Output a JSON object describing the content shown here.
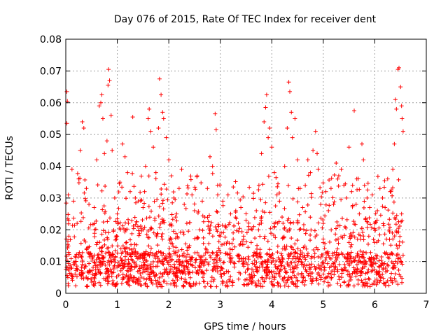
{
  "chart_data": {
    "type": "scatter",
    "title": "Day 076 of 2015, Rate Of TEC Index for receiver dent",
    "xlabel": "GPS time / hours",
    "ylabel": "ROTI / TECUs",
    "xlim": [
      0,
      7
    ],
    "ylim": [
      0,
      0.08
    ],
    "xticks": [
      0,
      1,
      2,
      3,
      4,
      5,
      6,
      7
    ],
    "yticks": [
      0,
      0.01,
      0.02,
      0.03,
      0.04,
      0.05,
      0.06,
      0.07,
      0.08
    ],
    "xtick_labels": [
      "0",
      "1",
      "2",
      "3",
      "4",
      "5",
      "6",
      "7"
    ],
    "ytick_labels": [
      "0",
      "0.01",
      "0.02",
      "0.03",
      "0.04",
      "0.05",
      "0.06",
      "0.07",
      "0.08"
    ],
    "grid": true,
    "marker": "+",
    "color": "#ff0000",
    "x_data_range": [
      0,
      6.55
    ],
    "series": [
      {
        "name": "ROTI",
        "points": [
          [
            0.02,
            0.0635
          ],
          [
            0.03,
            0.0605
          ],
          [
            0.02,
            0.0535
          ],
          [
            0.05,
            0.031
          ],
          [
            0.06,
            0.018
          ],
          [
            0.08,
            0.008
          ],
          [
            0.04,
            0.005
          ],
          [
            0.12,
            0.039
          ],
          [
            0.15,
            0.029
          ],
          [
            0.18,
            0.006
          ],
          [
            0.22,
            0.022
          ],
          [
            0.25,
            0.036
          ],
          [
            0.28,
            0.045
          ],
          [
            0.32,
            0.054
          ],
          [
            0.35,
            0.052
          ],
          [
            0.4,
            0.033
          ],
          [
            0.45,
            0.028
          ],
          [
            0.5,
            0.012
          ],
          [
            0.55,
            0.027
          ],
          [
            0.6,
            0.042
          ],
          [
            0.65,
            0.059
          ],
          [
            0.68,
            0.06
          ],
          [
            0.7,
            0.0625
          ],
          [
            0.72,
            0.055
          ],
          [
            0.75,
            0.044
          ],
          [
            0.8,
            0.048
          ],
          [
            0.82,
            0.0655
          ],
          [
            0.83,
            0.0705
          ],
          [
            0.85,
            0.067
          ],
          [
            0.88,
            0.056
          ],
          [
            0.9,
            0.045
          ],
          [
            0.95,
            0.03
          ],
          [
            1.0,
            0.025
          ],
          [
            1.05,
            0.035
          ],
          [
            1.1,
            0.047
          ],
          [
            1.15,
            0.043
          ],
          [
            1.2,
            0.038
          ],
          [
            1.25,
            0.032
          ],
          [
            1.3,
            0.0555
          ],
          [
            1.35,
            0.03
          ],
          [
            1.4,
            0.021
          ],
          [
            1.45,
            0.012
          ],
          [
            1.5,
            0.027
          ],
          [
            1.55,
            0.04
          ],
          [
            1.6,
            0.055
          ],
          [
            1.62,
            0.058
          ],
          [
            1.65,
            0.051
          ],
          [
            1.7,
            0.046
          ],
          [
            1.75,
            0.038
          ],
          [
            1.8,
            0.052
          ],
          [
            1.82,
            0.0675
          ],
          [
            1.85,
            0.0625
          ],
          [
            1.88,
            0.057
          ],
          [
            1.9,
            0.055
          ],
          [
            1.95,
            0.049
          ],
          [
            2.0,
            0.042
          ],
          [
            2.05,
            0.037
          ],
          [
            2.1,
            0.03
          ],
          [
            2.15,
            0.025
          ],
          [
            2.2,
            0.033
          ],
          [
            2.25,
            0.039
          ],
          [
            2.3,
            0.028
          ],
          [
            2.35,
            0.022
          ],
          [
            2.4,
            0.015
          ],
          [
            2.45,
            0.031
          ],
          [
            2.5,
            0.026
          ],
          [
            2.55,
            0.037
          ],
          [
            2.6,
            0.02
          ],
          [
            2.65,
            0.029
          ],
          [
            2.7,
            0.024
          ],
          [
            2.75,
            0.033
          ],
          [
            2.8,
            0.043
          ],
          [
            2.85,
            0.04
          ],
          [
            2.9,
            0.0565
          ],
          [
            2.92,
            0.0515
          ],
          [
            2.95,
            0.031
          ],
          [
            3.0,
            0.018
          ],
          [
            3.05,
            0.029
          ],
          [
            3.1,
            0.021
          ],
          [
            3.15,
            0.031
          ],
          [
            3.2,
            0.025
          ],
          [
            3.25,
            0.019
          ],
          [
            3.3,
            0.026
          ],
          [
            3.35,
            0.022
          ],
          [
            3.4,
            0.027
          ],
          [
            3.45,
            0.017
          ],
          [
            3.5,
            0.023
          ],
          [
            3.55,
            0.02
          ],
          [
            3.6,
            0.016
          ],
          [
            3.65,
            0.021
          ],
          [
            3.7,
            0.026
          ],
          [
            3.75,
            0.034
          ],
          [
            3.8,
            0.044
          ],
          [
            3.85,
            0.054
          ],
          [
            3.88,
            0.0585
          ],
          [
            3.9,
            0.0625
          ],
          [
            3.93,
            0.049
          ],
          [
            3.96,
            0.052
          ],
          [
            4.0,
            0.046
          ],
          [
            4.05,
            0.038
          ],
          [
            4.1,
            0.031
          ],
          [
            4.15,
            0.029
          ],
          [
            4.2,
            0.024
          ],
          [
            4.25,
            0.04
          ],
          [
            4.3,
            0.052
          ],
          [
            4.33,
            0.0665
          ],
          [
            4.35,
            0.0635
          ],
          [
            4.38,
            0.057
          ],
          [
            4.4,
            0.049
          ],
          [
            4.45,
            0.055
          ],
          [
            4.5,
            0.042
          ],
          [
            4.55,
            0.033
          ],
          [
            4.6,
            0.027
          ],
          [
            4.65,
            0.034
          ],
          [
            4.7,
            0.042
          ],
          [
            4.75,
            0.038
          ],
          [
            4.8,
            0.045
          ],
          [
            4.85,
            0.051
          ],
          [
            4.88,
            0.044
          ],
          [
            4.9,
            0.039
          ],
          [
            4.95,
            0.028
          ],
          [
            5.0,
            0.022
          ],
          [
            5.05,
            0.032
          ],
          [
            5.1,
            0.026
          ],
          [
            5.15,
            0.033
          ],
          [
            5.2,
            0.028
          ],
          [
            5.25,
            0.041
          ],
          [
            5.3,
            0.037
          ],
          [
            5.35,
            0.039
          ],
          [
            5.4,
            0.034
          ],
          [
            5.45,
            0.03
          ],
          [
            5.5,
            0.046
          ],
          [
            5.55,
            0.032
          ],
          [
            5.6,
            0.0575
          ],
          [
            5.65,
            0.036
          ],
          [
            5.7,
            0.025
          ],
          [
            5.75,
            0.047
          ],
          [
            5.78,
            0.042
          ],
          [
            5.8,
            0.034
          ],
          [
            5.85,
            0.03
          ],
          [
            5.9,
            0.027
          ],
          [
            5.95,
            0.031
          ],
          [
            6.0,
            0.022
          ],
          [
            6.05,
            0.026
          ],
          [
            6.1,
            0.033
          ],
          [
            6.15,
            0.03
          ],
          [
            6.2,
            0.027
          ],
          [
            6.25,
            0.036
          ],
          [
            6.3,
            0.032
          ],
          [
            6.35,
            0.039
          ],
          [
            6.38,
            0.047
          ],
          [
            6.4,
            0.061
          ],
          [
            6.42,
            0.058
          ],
          [
            6.45,
            0.0705
          ],
          [
            6.47,
            0.071
          ],
          [
            6.5,
            0.065
          ],
          [
            6.52,
            0.059
          ],
          [
            6.53,
            0.055
          ],
          [
            6.55,
            0.051
          ],
          [
            6.52,
            0.025
          ],
          [
            6.55,
            0.012
          ]
        ]
      }
    ]
  }
}
